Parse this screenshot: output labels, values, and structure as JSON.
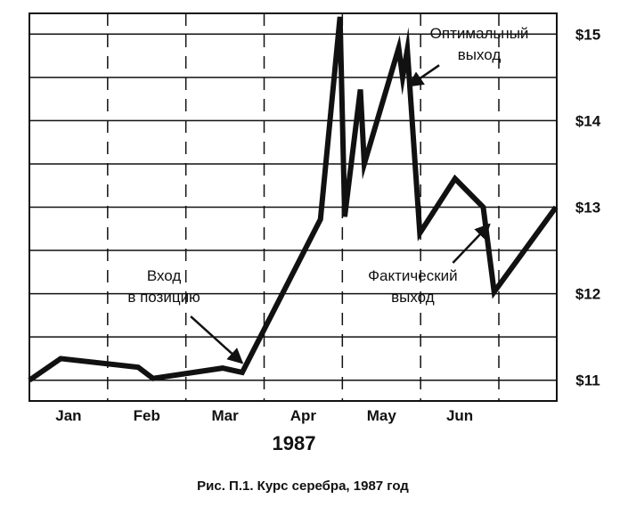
{
  "chart_data": {
    "type": "line",
    "xlabel": "1987",
    "caption": "Рис. П.1. Курс серебра, 1987 год",
    "xlim": [
      0,
      6.74
    ],
    "xticks": [
      {
        "value": 0.5,
        "label": "Jan"
      },
      {
        "value": 1.5,
        "label": "Feb"
      },
      {
        "value": 2.5,
        "label": "Mar"
      },
      {
        "value": 3.5,
        "label": "Apr"
      },
      {
        "value": 4.5,
        "label": "May"
      },
      {
        "value": 5.5,
        "label": "Jun"
      }
    ],
    "x_gridlines": [
      1,
      2,
      3,
      4,
      5,
      6
    ],
    "ylim": [
      10.76,
      15.24
    ],
    "yticks": [
      {
        "value": 11,
        "label": "$11"
      },
      {
        "value": 12,
        "label": "$12"
      },
      {
        "value": 13,
        "label": "$13"
      },
      {
        "value": 14,
        "label": "$14"
      },
      {
        "value": 15,
        "label": "$15"
      }
    ],
    "y_gridlines": [
      11,
      11.5,
      12,
      12.5,
      13,
      13.5,
      14,
      14.5,
      15
    ],
    "grid": true,
    "series": [
      {
        "color": "#111111",
        "x": [
          0,
          0.4,
          1.39,
          1.58,
          2.47,
          2.72,
          3.72,
          3.97,
          4.03,
          4.23,
          4.28,
          4.72,
          4.77,
          4.83,
          4.99,
          5.44,
          5.8,
          5.94,
          6.73
        ],
        "values": [
          11.0,
          11.25,
          11.15,
          11.02,
          11.14,
          11.09,
          12.86,
          15.2,
          12.89,
          14.36,
          13.5,
          14.84,
          14.5,
          14.82,
          12.7,
          13.33,
          13.0,
          12.02,
          13.0
        ]
      }
    ],
    "annotations": [
      {
        "lines": [
          "Оптимальный",
          "выход"
        ],
        "x": 4.85,
        "y": 14.4,
        "text_x": 5.75,
        "text_y": 14.95
      },
      {
        "lines": [
          "Фактический",
          "выход"
        ],
        "x": 5.88,
        "y": 12.8,
        "text_x": 4.9,
        "text_y": 12.15
      },
      {
        "lines": [
          "Вход",
          "в позицию"
        ],
        "x": 2.72,
        "y": 11.2,
        "text_x": 1.72,
        "text_y": 12.15
      }
    ]
  }
}
